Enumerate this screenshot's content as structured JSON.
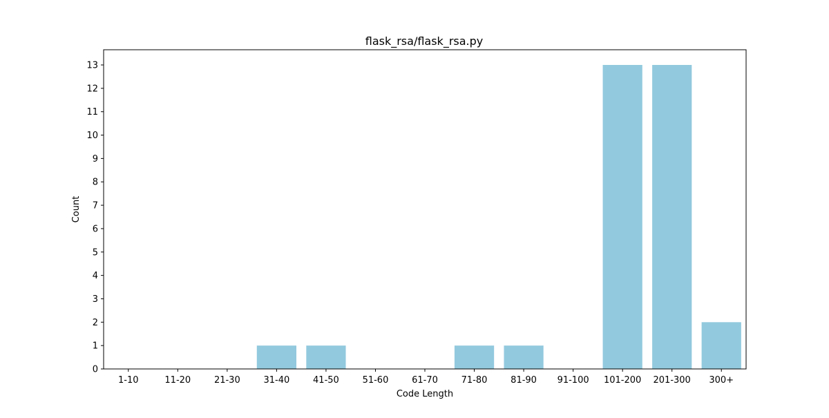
{
  "chart_data": {
    "type": "bar",
    "title": "flask_rsa/flask_rsa.py",
    "xlabel": "Code Length",
    "ylabel": "Count",
    "categories": [
      "1-10",
      "11-20",
      "21-30",
      "31-40",
      "41-50",
      "51-60",
      "61-70",
      "71-80",
      "81-90",
      "91-100",
      "101-200",
      "201-300",
      "300+"
    ],
    "values": [
      0,
      0,
      0,
      1,
      1,
      0,
      0,
      1,
      1,
      0,
      13,
      13,
      2
    ],
    "ylim": [
      0,
      13.65
    ],
    "yticks": [
      0,
      1,
      2,
      3,
      4,
      5,
      6,
      7,
      8,
      9,
      10,
      11,
      12,
      13
    ],
    "grid": false,
    "legend": "none",
    "bar_color": "#92c9de"
  }
}
